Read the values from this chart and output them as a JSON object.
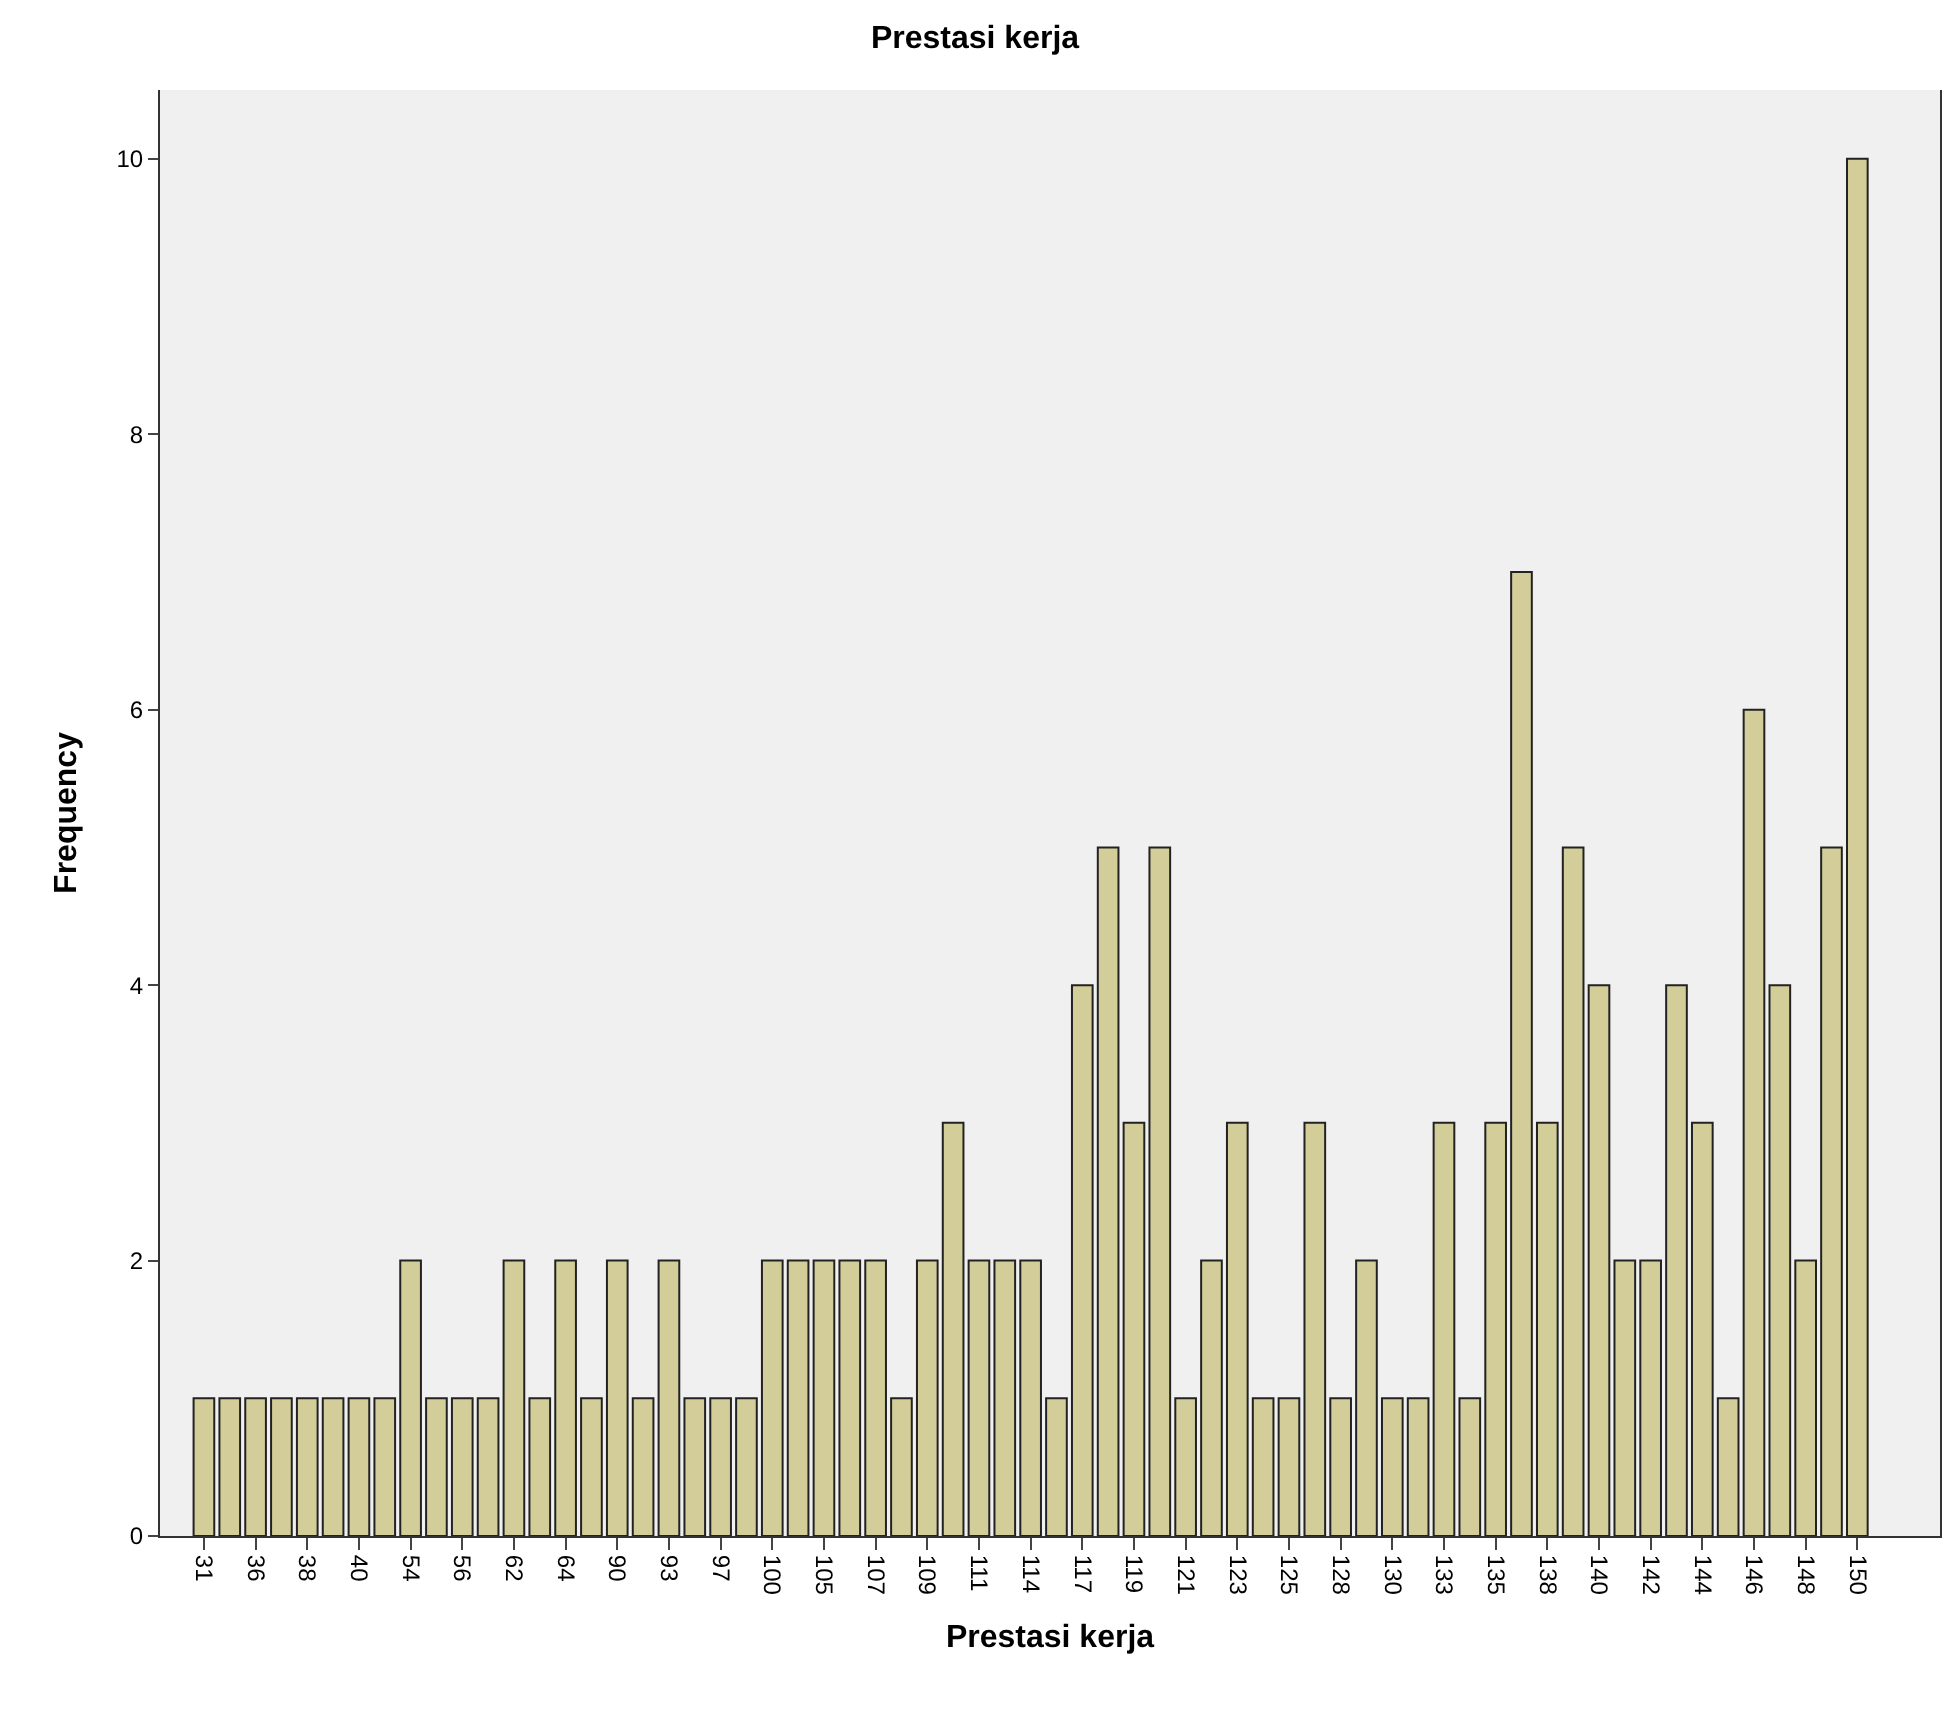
{
  "chart_data": {
    "type": "bar",
    "title": "Prestasi kerja",
    "xlabel": "Prestasi kerja",
    "ylabel": "Frequency",
    "categories": [
      "31",
      null,
      "36",
      null,
      "38",
      null,
      "40",
      null,
      "54",
      null,
      "56",
      null,
      "62",
      null,
      "64",
      null,
      "90",
      null,
      "93",
      null,
      "97",
      null,
      "100",
      null,
      "105",
      null,
      "107",
      null,
      "109",
      null,
      "111",
      null,
      "114",
      null,
      "117",
      null,
      "119",
      null,
      "121",
      null,
      "123",
      null,
      "125",
      null,
      "128",
      null,
      "130",
      null,
      "133",
      null,
      "135",
      null,
      "138",
      null,
      "140",
      null,
      "142",
      null,
      "144",
      null,
      "146",
      null,
      "148",
      null,
      "150"
    ],
    "values": [
      1,
      1,
      1,
      1,
      1,
      1,
      1,
      1,
      2,
      1,
      1,
      1,
      2,
      1,
      2,
      1,
      2,
      1,
      2,
      1,
      1,
      1,
      2,
      2,
      2,
      2,
      2,
      1,
      2,
      3,
      2,
      2,
      2,
      1,
      4,
      5,
      3,
      5,
      1,
      2,
      3,
      1,
      1,
      3,
      1,
      2,
      1,
      1,
      3,
      1,
      3,
      7,
      3,
      5,
      4,
      2,
      2,
      4,
      3,
      1,
      6,
      4,
      2,
      5,
      10
    ],
    "color": "#d3ce99",
    "ylim": [
      0,
      10.5
    ],
    "yticks": [
      0,
      2,
      4,
      6,
      8,
      10
    ],
    "grid": false
  }
}
